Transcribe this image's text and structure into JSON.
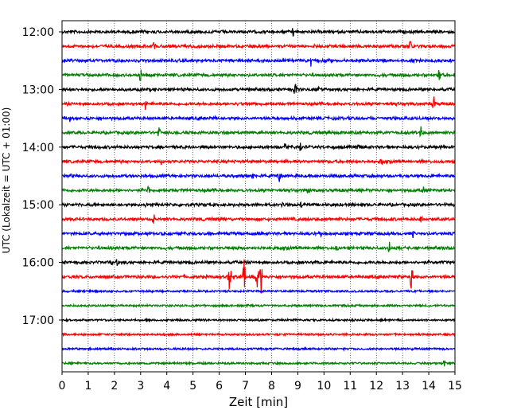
{
  "chart_data": {
    "type": "line",
    "title": "",
    "xlabel": "Zeit  [min]",
    "ylabel": "UTC (Lokalzeit = UTC + 01:00)",
    "xlim": [
      0,
      15
    ],
    "x_ticks": [
      "0",
      "1",
      "2",
      "3",
      "4",
      "5",
      "6",
      "7",
      "8",
      "9",
      "10",
      "11",
      "12",
      "13",
      "14",
      "15"
    ],
    "y_tick_labels": [
      "12:00",
      "13:00",
      "14:00",
      "15:00",
      "16:00",
      "17:00"
    ],
    "grid": "vertical dotted lines at each minute",
    "colors": [
      "#000000",
      "#ff0000",
      "#0000ff",
      "#008000"
    ],
    "series": [
      {
        "trace_start": "12:00",
        "color": "#000000",
        "spikes": [
          [
            8.8,
            7
          ],
          [
            1.5,
            3
          ]
        ]
      },
      {
        "trace_start": "12:15",
        "color": "#ff0000",
        "spikes": [
          [
            3.5,
            7
          ],
          [
            9.6,
            4
          ],
          [
            13.3,
            9
          ]
        ]
      },
      {
        "trace_start": "12:30",
        "color": "#0000ff",
        "spikes": [
          [
            9.5,
            7
          ],
          [
            9.8,
            4
          ]
        ]
      },
      {
        "trace_start": "12:45",
        "color": "#008000",
        "spikes": [
          [
            3.0,
            9
          ],
          [
            14.4,
            8
          ],
          [
            1.2,
            3
          ]
        ]
      },
      {
        "trace_start": "13:00",
        "color": "#000000",
        "spikes": [
          [
            8.9,
            10
          ],
          [
            6.9,
            4
          ],
          [
            9.8,
            4
          ]
        ]
      },
      {
        "trace_start": "13:15",
        "color": "#ff0000",
        "spikes": [
          [
            3.2,
            8
          ],
          [
            14.2,
            9
          ],
          [
            6.5,
            4
          ]
        ]
      },
      {
        "trace_start": "13:30",
        "color": "#0000ff",
        "spikes": [
          [
            0.3,
            4
          ],
          [
            1.0,
            3
          ],
          [
            5.8,
            3
          ]
        ]
      },
      {
        "trace_start": "13:45",
        "color": "#008000",
        "spikes": [
          [
            3.7,
            8
          ],
          [
            13.7,
            8
          ],
          [
            0.7,
            4
          ]
        ]
      },
      {
        "trace_start": "14:00",
        "color": "#000000",
        "spikes": [
          [
            8.5,
            8
          ],
          [
            9.1,
            6
          ],
          [
            11.3,
            4
          ]
        ]
      },
      {
        "trace_start": "14:15",
        "color": "#ff0000",
        "spikes": [
          [
            12.2,
            8
          ],
          [
            3.8,
            4
          ]
        ]
      },
      {
        "trace_start": "14:30",
        "color": "#0000ff",
        "spikes": [
          [
            8.3,
            8
          ],
          [
            7.3,
            4
          ],
          [
            0.3,
            3
          ]
        ]
      },
      {
        "trace_start": "14:45",
        "color": "#008000",
        "spikes": [
          [
            3.3,
            7
          ],
          [
            9.4,
            4
          ],
          [
            13.8,
            4
          ]
        ]
      },
      {
        "trace_start": "15:00",
        "color": "#000000",
        "spikes": [
          [
            9.1,
            5
          ],
          [
            8.4,
            4
          ],
          [
            3.2,
            3
          ]
        ]
      },
      {
        "trace_start": "15:15",
        "color": "#ff0000",
        "spikes": [
          [
            3.5,
            6
          ],
          [
            13.7,
            8
          ],
          [
            6.2,
            3
          ]
        ]
      },
      {
        "trace_start": "15:30",
        "color": "#0000ff",
        "spikes": [
          [
            13.4,
            7
          ],
          [
            9.9,
            3
          ]
        ]
      },
      {
        "trace_start": "15:45",
        "color": "#008000",
        "spikes": [
          [
            12.5,
            9
          ],
          [
            10.5,
            3
          ]
        ]
      },
      {
        "trace_start": "16:00",
        "color": "#000000",
        "spikes": [
          [
            9.7,
            5
          ],
          [
            2.1,
            4
          ],
          [
            1.9,
            3
          ]
        ]
      },
      {
        "trace_start": "16:15",
        "color": "#ff0000",
        "spikes": [
          [
            6.4,
            24
          ],
          [
            6.95,
            22
          ],
          [
            7.45,
            20
          ],
          [
            7.6,
            22
          ],
          [
            13.35,
            24
          ]
        ]
      },
      {
        "trace_start": "16:30",
        "color": "#0000ff",
        "spikes": []
      },
      {
        "trace_start": "16:45",
        "color": "#008000",
        "spikes": []
      },
      {
        "trace_start": "17:00",
        "color": "#000000",
        "spikes": []
      },
      {
        "trace_start": "17:15",
        "color": "#ff0000",
        "spikes": []
      },
      {
        "trace_start": "17:30",
        "color": "#0000ff",
        "spikes": []
      },
      {
        "trace_start": "17:45",
        "color": "#008000",
        "spikes": [
          [
            14.6,
            7
          ]
        ]
      }
    ]
  }
}
